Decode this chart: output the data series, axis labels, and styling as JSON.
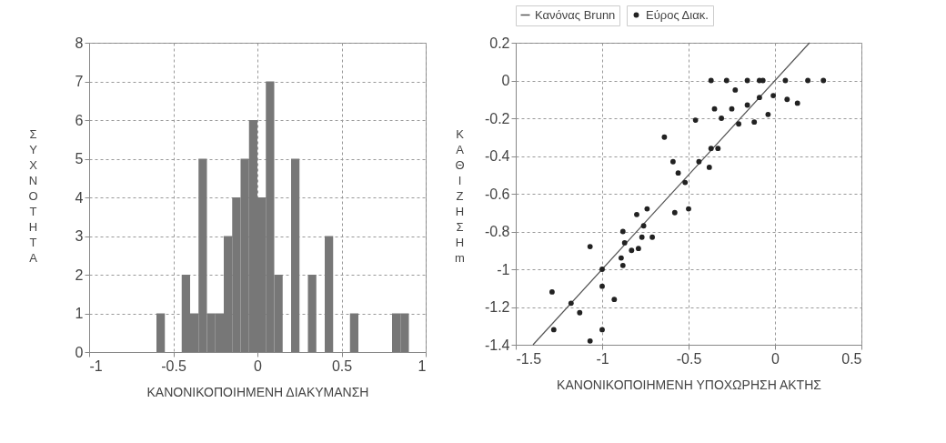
{
  "chart_data": [
    {
      "type": "histogram",
      "xlabel": "ΚΑΝΟΝΙΚΟΠΟΙΗΜΕΝΗ ΔΙΑΚΥΜΑΝΣΗ",
      "ylabel": "ΣΥΧΝΟΤΗΤΑ",
      "color": "#777777",
      "bins": [
        -0.6,
        -0.55,
        -0.5,
        -0.45,
        -0.4,
        -0.35,
        -0.3,
        -0.25,
        -0.2,
        -0.15,
        -0.1,
        -0.05,
        0,
        0.05,
        0.1,
        0.15,
        0.2,
        0.25,
        0.3,
        0.35,
        0.4,
        0.45,
        0.5,
        0.55,
        0.6,
        0.65,
        0.7,
        0.75,
        0.8,
        0.85,
        0.9
      ],
      "values": [
        1,
        0,
        0,
        2,
        1,
        5,
        1,
        1,
        3,
        4,
        5,
        6,
        4,
        7,
        2,
        0,
        5,
        0,
        2,
        0,
        3,
        0,
        0,
        1,
        0,
        0,
        0,
        0,
        1,
        1
      ],
      "xlim": [
        -1,
        1
      ],
      "xticks": [
        -1,
        -0.5,
        0,
        0.5,
        1
      ],
      "ylim": [
        0,
        8
      ],
      "yticks": [
        0,
        1,
        2,
        3,
        4,
        5,
        6,
        7,
        8
      ],
      "grid": true
    },
    {
      "type": "scatter",
      "xlabel": "ΚΑΝΟΝΙΚΟΠΟΙΗΜΕΝΗ ΥΠΟΧΩΡΗΣΗ ΑΚΤΗΣ",
      "ylabel": "ΚΑΘΙΖΗΣΗ m",
      "xlim": [
        -1.5,
        0.5
      ],
      "xticks": [
        -1.5,
        -1,
        -0.5,
        0,
        0.5
      ],
      "ylim": [
        -1.4,
        0.2
      ],
      "yticks": [
        -1.4,
        -1.2,
        -1,
        -0.8,
        -0.6,
        -0.4,
        -0.2,
        0,
        0.2
      ],
      "grid": true,
      "legend": "top",
      "series": [
        {
          "name": "Κανόνας Brunn",
          "type": "line",
          "line_style": "solid",
          "color": "#555555",
          "x": [
            -1.4,
            0.2
          ],
          "values": [
            -1.4,
            0.2
          ]
        },
        {
          "name": "Εύρος Διακ.",
          "type": "scatter",
          "marker": "circle",
          "color": "#222222",
          "x": [
            -0.37,
            -0.28,
            -0.16,
            -0.09,
            -0.07,
            0.06,
            0.19,
            0.28,
            -0.23,
            -0.16,
            -0.09,
            -0.01,
            0.07,
            0.13,
            -0.35,
            -0.25,
            -0.04,
            -0.46,
            -0.31,
            -0.21,
            -0.12,
            -0.64,
            -0.37,
            -0.33,
            -0.44,
            -0.38,
            -0.59,
            -0.56,
            -0.52,
            -0.58,
            -0.5,
            -0.74,
            -0.8,
            -0.76,
            -0.88,
            -0.77,
            -0.71,
            -0.87,
            -0.83,
            -0.79,
            -1.07,
            -0.89,
            -0.88,
            -1,
            -1,
            -1.29,
            -1.18,
            -1.13,
            -0.93,
            -1.28,
            -1,
            -1.07
          ],
          "values": [
            0,
            0,
            0,
            0,
            0,
            0,
            0,
            0,
            -0.05,
            -0.13,
            -0.09,
            -0.08,
            -0.1,
            -0.12,
            -0.15,
            -0.15,
            -0.18,
            -0.21,
            -0.2,
            -0.23,
            -0.22,
            -0.3,
            -0.36,
            -0.36,
            -0.43,
            -0.46,
            -0.43,
            -0.49,
            -0.54,
            -0.7,
            -0.68,
            -0.68,
            -0.71,
            -0.77,
            -0.8,
            -0.83,
            -0.83,
            -0.86,
            -0.9,
            -0.89,
            -0.88,
            -0.94,
            -0.98,
            -1,
            -1.09,
            -1.12,
            -1.18,
            -1.23,
            -1.16,
            -1.32,
            -1.32,
            -1.38
          ]
        }
      ]
    }
  ]
}
